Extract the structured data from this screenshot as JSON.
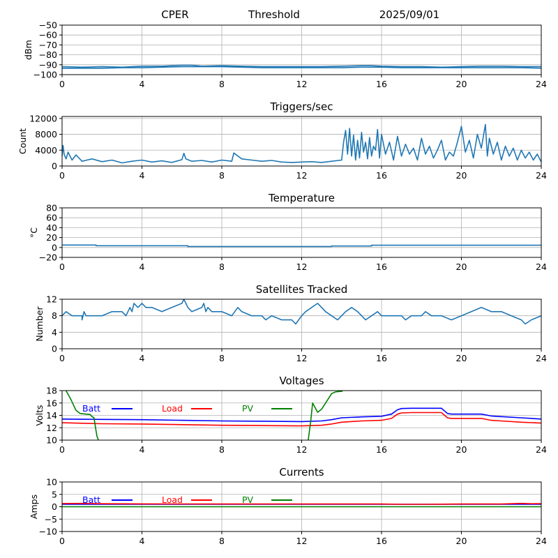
{
  "header": {
    "station": "CPER",
    "mode": "Threshold",
    "date": "2025/09/01"
  },
  "colors": {
    "default": "#1f77b4",
    "batt": "#0000ff",
    "load": "#ff0000",
    "pv": "#008000",
    "grid": "#b0b0b0"
  },
  "chart_data": [
    {
      "id": "rssi",
      "type": "line",
      "title": "",
      "ylabel": "dBm",
      "xlim": [
        0,
        24
      ],
      "xticks": [
        0,
        4,
        8,
        12,
        16,
        20,
        24
      ],
      "ylim": [
        -100,
        -50
      ],
      "yticks": [
        -100,
        -90,
        -80,
        -70,
        -60,
        -50
      ],
      "grid": true,
      "series": [
        {
          "color": "#1f77b4",
          "x": [
            0,
            1,
            2,
            3,
            4,
            5,
            6,
            6.5,
            7,
            8,
            9,
            10,
            11,
            12,
            13,
            14,
            15,
            15.5,
            16,
            17,
            18,
            19,
            20,
            21,
            22,
            23,
            24
          ],
          "y": [
            -92,
            -92.5,
            -92,
            -92.5,
            -91.5,
            -91.5,
            -90.5,
            -90.5,
            -91.5,
            -91,
            -91.5,
            -92,
            -92,
            -92,
            -92,
            -91.5,
            -91,
            -91,
            -91.5,
            -92,
            -92,
            -92.5,
            -92,
            -91.5,
            -91.5,
            -92,
            -92
          ]
        },
        {
          "color": "#1f77b4",
          "x": [
            0,
            1,
            2,
            3,
            4,
            5,
            6,
            7,
            8,
            9,
            10,
            11,
            12,
            13,
            14,
            15,
            16,
            17,
            18,
            19,
            20,
            21,
            22,
            23,
            24
          ],
          "y": [
            -93.5,
            -93.5,
            -93.5,
            -93,
            -93,
            -92.5,
            -92,
            -92,
            -92,
            -92.5,
            -93,
            -93,
            -93,
            -93,
            -93,
            -92.5,
            -92.5,
            -93,
            -93,
            -93,
            -93,
            -93,
            -93,
            -93,
            -93.5
          ]
        }
      ]
    },
    {
      "id": "triggers",
      "type": "line",
      "title": "Triggers/sec",
      "ylabel": "Count",
      "xlim": [
        0,
        24
      ],
      "xticks": [
        0,
        4,
        8,
        12,
        16,
        20,
        24
      ],
      "ylim": [
        0,
        12500
      ],
      "yticks": [
        0,
        4000,
        8000,
        12000
      ],
      "grid": true,
      "series": [
        {
          "color": "#1f77b4",
          "x": [
            0,
            0.05,
            0.1,
            0.2,
            0.3,
            0.5,
            0.7,
            1,
            1.5,
            2,
            2.5,
            3,
            3.5,
            4,
            4.5,
            5,
            5.5,
            6,
            6.1,
            6.2,
            6.5,
            7,
            7.5,
            8,
            8.5,
            8.6,
            9,
            9.5,
            10,
            10.5,
            11,
            11.5,
            12,
            12.5,
            13,
            13.5,
            14,
            14.1,
            14.2,
            14.3,
            14.4,
            14.5,
            14.6,
            14.7,
            14.8,
            14.9,
            15,
            15.1,
            15.2,
            15.3,
            15.4,
            15.5,
            15.6,
            15.7,
            15.8,
            15.9,
            16,
            16.2,
            16.4,
            16.6,
            16.8,
            17,
            17.2,
            17.4,
            17.6,
            17.8,
            18,
            18.2,
            18.4,
            18.6,
            18.8,
            19,
            19.2,
            19.4,
            19.6,
            19.8,
            20,
            20.2,
            20.4,
            20.6,
            20.8,
            21,
            21.2,
            21.3,
            21.4,
            21.6,
            21.8,
            22,
            22.2,
            22.4,
            22.6,
            22.8,
            23,
            23.2,
            23.4,
            23.6,
            23.8,
            24
          ],
          "y": [
            2500,
            5200,
            3000,
            1800,
            3500,
            1500,
            2800,
            1200,
            1800,
            1100,
            1500,
            800,
            1200,
            1500,
            1000,
            1300,
            900,
            1600,
            3200,
            1800,
            1200,
            1400,
            1000,
            1500,
            1200,
            3300,
            1800,
            1500,
            1200,
            1400,
            1000,
            900,
            1000,
            1100,
            900,
            1200,
            1500,
            6000,
            9000,
            3000,
            9500,
            2500,
            7800,
            1500,
            6500,
            2000,
            8500,
            3500,
            6000,
            1800,
            7200,
            2500,
            5000,
            4000,
            9200,
            2000,
            8000,
            3000,
            6000,
            1500,
            7500,
            2500,
            5500,
            3000,
            4500,
            1500,
            7000,
            3000,
            5000,
            2000,
            4000,
            6500,
            1500,
            3500,
            2500,
            6000,
            10000,
            3500,
            6500,
            2000,
            8000,
            4500,
            10500,
            2500,
            7000,
            3000,
            6000,
            1500,
            5000,
            2500,
            4500,
            1500,
            4000,
            2000,
            3500,
            1500,
            3000,
            1000
          ]
        }
      ]
    },
    {
      "id": "temperature",
      "type": "line",
      "title": "Temperature",
      "ylabel": "°C",
      "xlim": [
        0,
        24
      ],
      "xticks": [
        0,
        4,
        8,
        12,
        16,
        20,
        24
      ],
      "ylim": [
        -20,
        80
      ],
      "yticks": [
        -20,
        0,
        20,
        40,
        60,
        80
      ],
      "grid": true,
      "series": [
        {
          "color": "#1f77b4",
          "x": [
            0,
            1.7,
            1.7,
            6.3,
            6.3,
            13.5,
            13.5,
            15.5,
            15.5,
            24
          ],
          "y": [
            5,
            5,
            3.5,
            3.5,
            2,
            2,
            3,
            3,
            4.5,
            4.5
          ]
        }
      ]
    },
    {
      "id": "satellites",
      "type": "line",
      "title": "Satellites Tracked",
      "ylabel": "Number",
      "xlim": [
        0,
        24
      ],
      "xticks": [
        0,
        4,
        8,
        12,
        16,
        20,
        24
      ],
      "ylim": [
        0,
        12
      ],
      "yticks": [
        0,
        4,
        8,
        12
      ],
      "grid": true,
      "series": [
        {
          "color": "#1f77b4",
          "x": [
            0,
            0.2,
            0.5,
            1,
            1,
            1.1,
            1.2,
            2,
            2.5,
            3,
            3.2,
            3.4,
            3.5,
            3.6,
            3.8,
            4,
            4.2,
            4.5,
            5,
            5.5,
            6,
            6.1,
            6.2,
            6.3,
            6.5,
            7,
            7.1,
            7.2,
            7.3,
            7.5,
            8,
            8.5,
            8.8,
            9,
            9.5,
            10,
            10.2,
            10.5,
            11,
            11.5,
            11.7,
            12,
            12.2,
            12.5,
            12.8,
            13,
            13.2,
            13.5,
            13.8,
            14,
            14.2,
            14.5,
            14.8,
            15,
            15.2,
            15.5,
            15.8,
            16,
            16.5,
            17,
            17.2,
            17.5,
            18,
            18.2,
            18.5,
            19,
            19.5,
            20,
            20.5,
            21,
            21.5,
            22,
            22.5,
            23,
            23.2,
            23.5,
            24
          ],
          "y": [
            8,
            9,
            8,
            8,
            7,
            9,
            8,
            8,
            9,
            9,
            8,
            10,
            9,
            11,
            10,
            11,
            10,
            10,
            9,
            10,
            11,
            12,
            11,
            10,
            9,
            10,
            11,
            9,
            10,
            9,
            9,
            8,
            10,
            9,
            8,
            8,
            7,
            8,
            7,
            7,
            6,
            8,
            9,
            10,
            11,
            10,
            9,
            8,
            7,
            8,
            9,
            10,
            9,
            8,
            7,
            8,
            9,
            8,
            8,
            8,
            7,
            8,
            8,
            9,
            8,
            8,
            7,
            8,
            9,
            10,
            9,
            9,
            8,
            7,
            6,
            7,
            8
          ]
        }
      ]
    },
    {
      "id": "voltages",
      "type": "line",
      "title": "Voltages",
      "ylabel": "Volts",
      "xlim": [
        0,
        24
      ],
      "xticks": [
        0,
        4,
        8,
        12,
        16,
        20,
        24
      ],
      "ylim": [
        10,
        18
      ],
      "yticks": [
        10,
        12,
        14,
        16,
        18
      ],
      "grid": true,
      "legend": [
        {
          "name": "Batt",
          "color": "#0000ff"
        },
        {
          "name": "Load",
          "color": "#ff0000"
        },
        {
          "name": "PV",
          "color": "#008000"
        }
      ],
      "series": [
        {
          "name": "Batt",
          "color": "#0000ff",
          "x": [
            0,
            2,
            4,
            6,
            8,
            10,
            12,
            13,
            13.5,
            14,
            15,
            16,
            16.5,
            16.8,
            17,
            17.5,
            18,
            19,
            19.3,
            19.5,
            20,
            21,
            21.5,
            22,
            23,
            24
          ],
          "y": [
            13.4,
            13.35,
            13.3,
            13.2,
            13.1,
            13.05,
            13,
            13.1,
            13.3,
            13.6,
            13.75,
            13.85,
            14.2,
            14.9,
            15.1,
            15.15,
            15.15,
            15.15,
            14.3,
            14.2,
            14.2,
            14.2,
            13.9,
            13.8,
            13.6,
            13.4
          ]
        },
        {
          "name": "Load",
          "color": "#ff0000",
          "x": [
            0,
            2,
            4,
            6,
            8,
            10,
            12,
            13,
            13.5,
            14,
            15,
            16,
            16.5,
            16.8,
            17,
            17.5,
            18,
            19,
            19.3,
            19.5,
            20,
            21,
            21.5,
            22,
            23,
            24
          ],
          "y": [
            12.8,
            12.65,
            12.6,
            12.5,
            12.4,
            12.35,
            12.3,
            12.4,
            12.6,
            12.9,
            13.1,
            13.2,
            13.5,
            14.2,
            14.4,
            14.45,
            14.45,
            14.45,
            13.6,
            13.5,
            13.5,
            13.5,
            13.2,
            13.1,
            12.9,
            12.75
          ]
        },
        {
          "name": "PV",
          "color": "#008000",
          "x": [
            0.2,
            0.45,
            0.7,
            0.9,
            1.2,
            1.4,
            1.5,
            1.6,
            1.7,
            1.75,
            1.82
          ],
          "y": [
            18,
            16.5,
            14.8,
            14.3,
            14.2,
            14.15,
            13.8,
            13.6,
            11.5,
            10.6,
            10
          ]
        },
        {
          "name": "PV",
          "color": "#008000",
          "x": [
            12.33,
            12.45,
            12.55,
            12.8,
            13,
            13.2,
            13.5,
            13.7,
            14,
            14.05
          ],
          "y": [
            10,
            13,
            16,
            14.5,
            15,
            16,
            17.5,
            17.8,
            17.9,
            17.9
          ]
        }
      ]
    },
    {
      "id": "currents",
      "type": "line",
      "title": "Currents",
      "ylabel": "Amps",
      "xlim": [
        0,
        24
      ],
      "xticks": [
        0,
        4,
        8,
        12,
        16,
        20,
        24
      ],
      "ylim": [
        -10,
        10
      ],
      "yticks": [
        -10,
        -5,
        0,
        5,
        10
      ],
      "grid": true,
      "legend": [
        {
          "name": "Batt",
          "color": "#0000ff"
        },
        {
          "name": "Load",
          "color": "#ff0000"
        },
        {
          "name": "PV",
          "color": "#008000"
        }
      ],
      "series": [
        {
          "name": "Batt",
          "color": "#0000ff",
          "x": [
            0,
            24
          ],
          "y": [
            1,
            1
          ]
        },
        {
          "name": "Load",
          "color": "#ff0000",
          "x": [
            0,
            1,
            2,
            4,
            8,
            12,
            16,
            17,
            18,
            20,
            22,
            23,
            23.5,
            24
          ],
          "y": [
            1.3,
            1.35,
            1.2,
            1.15,
            1.1,
            1.1,
            1.1,
            1,
            1,
            1.1,
            1.1,
            1.35,
            1.2,
            1.25
          ]
        },
        {
          "name": "PV",
          "color": "#008000",
          "x": [
            0,
            24
          ],
          "y": [
            0,
            0
          ]
        }
      ]
    }
  ]
}
